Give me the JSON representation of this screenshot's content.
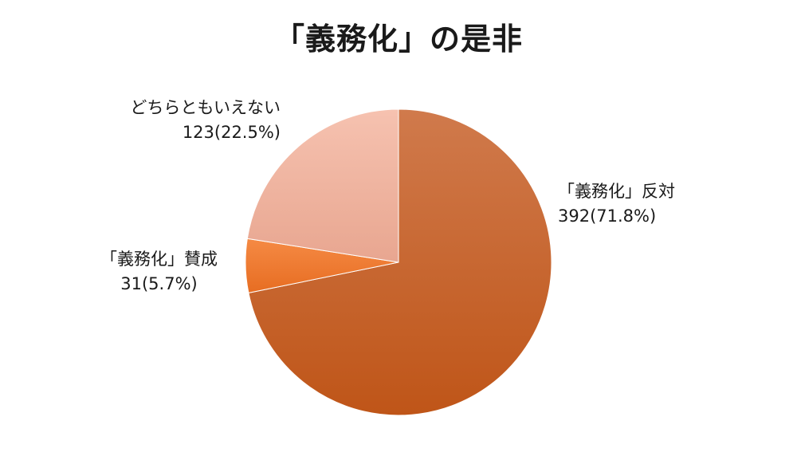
{
  "chart_data": {
    "type": "pie",
    "title": "「義務化」の是非",
    "slices": [
      {
        "name": "「義務化」反対",
        "value": 392,
        "percent": "71.8%",
        "value_label": "392(71.8%)",
        "color": "#c8601f"
      },
      {
        "name": "「義務化」賛成",
        "value": 31,
        "percent": "5.7%",
        "value_label": "31(5.7%)",
        "color": "#f0782e"
      },
      {
        "name": "どちらともいえない",
        "value": 123,
        "percent": "22.5%",
        "value_label": "123(22.5%)",
        "color": "#f2b4a0"
      }
    ],
    "start_angle_deg": 0,
    "direction": "clockwise"
  }
}
